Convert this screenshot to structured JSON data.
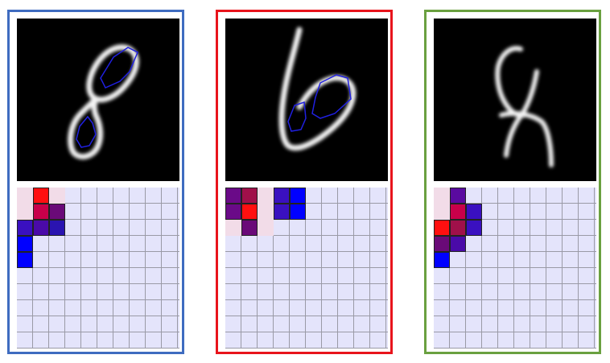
{
  "panels": [
    {
      "name": "panel-digit-8",
      "frame_color": "#3f6cc0",
      "glyph": "8",
      "cells": [
        {
          "row": 0,
          "col": 1,
          "color": "#ff1010"
        },
        {
          "row": 1,
          "col": 1,
          "color": "#c8004a"
        },
        {
          "row": 1,
          "col": 2,
          "color": "#6a0a78"
        },
        {
          "row": 2,
          "col": 0,
          "color": "#3a10c0"
        },
        {
          "row": 2,
          "col": 1,
          "color": "#4a0aa8"
        },
        {
          "row": 2,
          "col": 2,
          "color": "#2a14b0"
        },
        {
          "row": 3,
          "col": 0,
          "color": "#0000ff"
        },
        {
          "row": 4,
          "col": 0,
          "color": "#0000ff"
        },
        {
          "row": 0,
          "col": 0,
          "color": "#f2dce8",
          "light": true
        },
        {
          "row": 0,
          "col": 2,
          "color": "#f2dce8",
          "light": true
        },
        {
          "row": 1,
          "col": 0,
          "color": "#f2dce8",
          "light": true
        }
      ]
    },
    {
      "name": "panel-digit-6",
      "frame_color": "#e8141c",
      "glyph": "6",
      "cells": [
        {
          "row": 0,
          "col": 0,
          "color": "#6a0a88"
        },
        {
          "row": 0,
          "col": 1,
          "color": "#a0104a"
        },
        {
          "row": 0,
          "col": 3,
          "color": "#3a10c0"
        },
        {
          "row": 0,
          "col": 4,
          "color": "#0000ff"
        },
        {
          "row": 1,
          "col": 0,
          "color": "#6a0a88"
        },
        {
          "row": 1,
          "col": 1,
          "color": "#ff1010"
        },
        {
          "row": 1,
          "col": 3,
          "color": "#3a10c0"
        },
        {
          "row": 1,
          "col": 4,
          "color": "#0000ff"
        },
        {
          "row": 2,
          "col": 1,
          "color": "#6a0a78"
        },
        {
          "row": 0,
          "col": 2,
          "color": "#f2dce8",
          "light": true
        },
        {
          "row": 1,
          "col": 2,
          "color": "#f2dce8",
          "light": true
        },
        {
          "row": 2,
          "col": 0,
          "color": "#f2dce8",
          "light": true
        },
        {
          "row": 2,
          "col": 2,
          "color": "#f2dce8",
          "light": true
        }
      ]
    },
    {
      "name": "panel-digit-4",
      "frame_color": "#6aa040",
      "glyph": "4",
      "cells": [
        {
          "row": 0,
          "col": 1,
          "color": "#5a0aa0"
        },
        {
          "row": 1,
          "col": 1,
          "color": "#c8004a"
        },
        {
          "row": 1,
          "col": 2,
          "color": "#3a10c0"
        },
        {
          "row": 2,
          "col": 0,
          "color": "#ff1010"
        },
        {
          "row": 2,
          "col": 1,
          "color": "#a0104a"
        },
        {
          "row": 2,
          "col": 2,
          "color": "#3a10c0"
        },
        {
          "row": 3,
          "col": 0,
          "color": "#6a0a78"
        },
        {
          "row": 3,
          "col": 1,
          "color": "#4a0aa8"
        },
        {
          "row": 4,
          "col": 0,
          "color": "#0000ff"
        },
        {
          "row": 0,
          "col": 0,
          "color": "#f2dce8",
          "light": true
        },
        {
          "row": 1,
          "col": 0,
          "color": "#f2dce8",
          "light": true
        }
      ]
    }
  ]
}
